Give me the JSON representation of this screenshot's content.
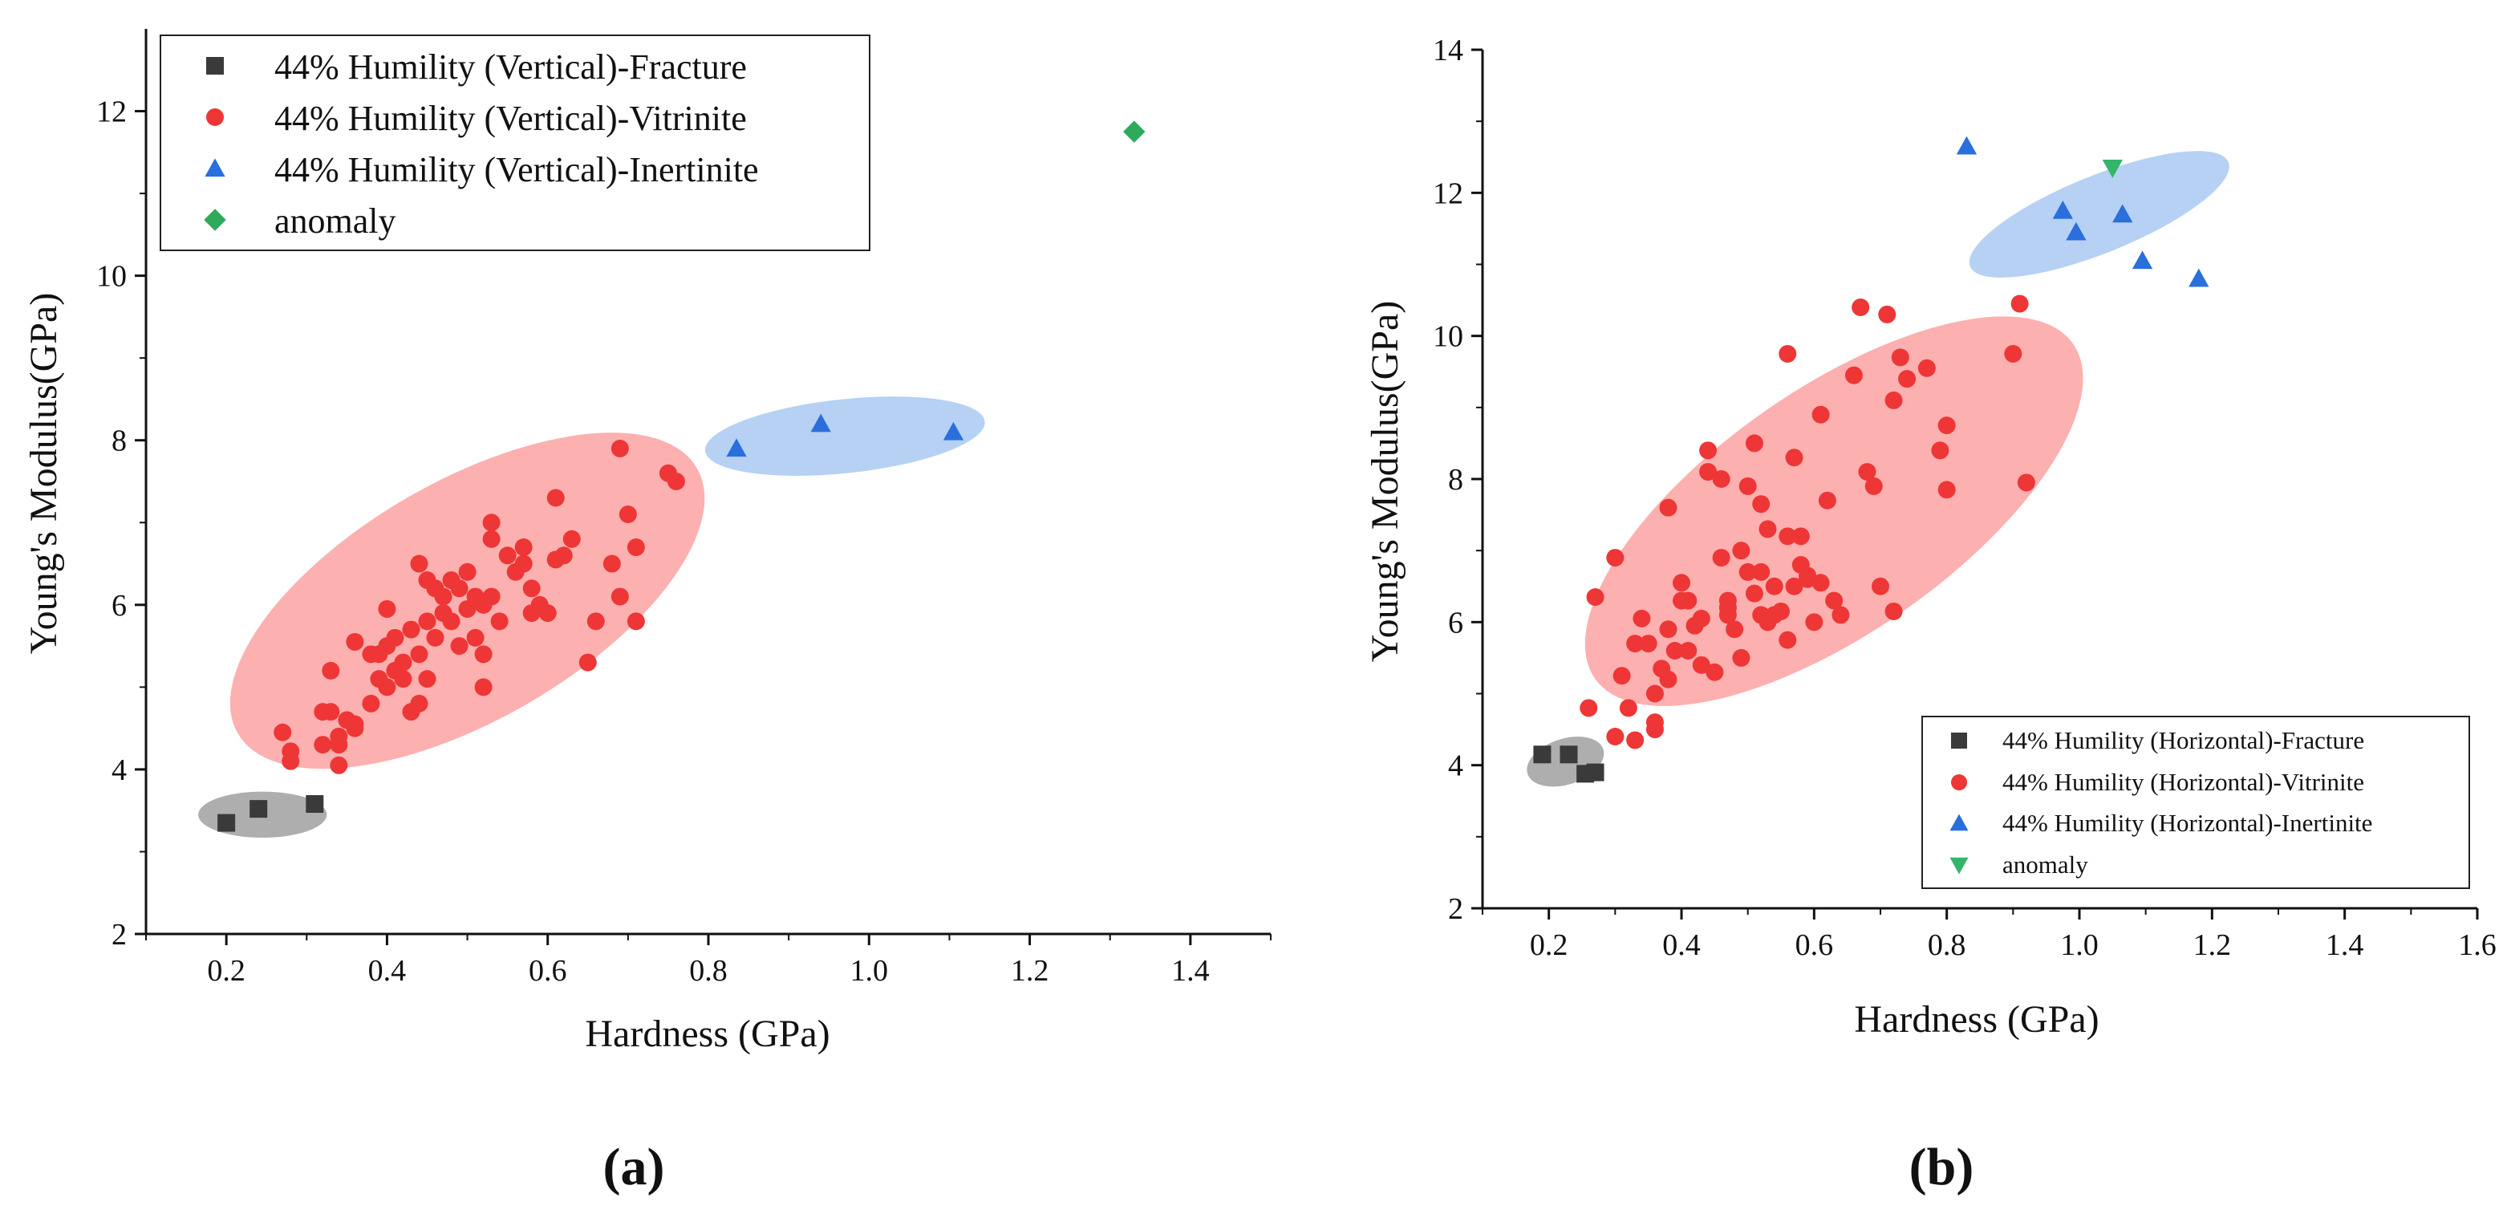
{
  "colors": {
    "fracture": "#3a3a3a",
    "vitrinite": "#ee3636",
    "inertinite": "#2a6fdc",
    "anomaly_a": "#2eaa5c",
    "anomaly_b": "#33b56a",
    "zone_fracture": "#9a9a9a",
    "zone_vitrinite": "#fc9c9c",
    "zone_inertinite": "#a4c6f0"
  },
  "chart_data": [
    {
      "type": "scatter",
      "panel_label": "(a)",
      "xlabel": "Hardness (GPa)",
      "ylabel": "Young's Modulus(GPa)",
      "xlim": [
        0.1,
        1.5
      ],
      "ylim": [
        2,
        13
      ],
      "xticks": [
        "0.2",
        "0.4",
        "0.6",
        "0.8",
        "1.0",
        "1.2",
        "1.4"
      ],
      "yticks": [
        "2",
        "4",
        "6",
        "8",
        "10",
        "12"
      ],
      "legend_position": "top-left",
      "zones": [
        {
          "name": "fracture",
          "cx": 0.245,
          "cy": 3.45,
          "rx": 0.08,
          "ry": 0.28,
          "angle": 0
        },
        {
          "name": "vitrinite",
          "cx": 0.5,
          "cy": 6.05,
          "rx": 0.33,
          "ry": 1.45,
          "angle": -30
        },
        {
          "name": "inertinite",
          "cx": 0.97,
          "cy": 8.05,
          "rx": 0.175,
          "ry": 0.45,
          "angle": -6
        }
      ],
      "series": [
        {
          "name": "44% Humility (Vertical)-Fracture",
          "marker": "square",
          "color_key": "fracture",
          "x": [
            0.2,
            0.24,
            0.31
          ],
          "y": [
            3.35,
            3.52,
            3.58
          ]
        },
        {
          "name": "44% Humility (Vertical)-Vitrinite",
          "marker": "circle",
          "color_key": "vitrinite",
          "x": [
            0.27,
            0.28,
            0.28,
            0.32,
            0.32,
            0.33,
            0.34,
            0.34,
            0.35,
            0.36,
            0.36,
            0.38,
            0.38,
            0.39,
            0.4,
            0.4,
            0.4,
            0.41,
            0.41,
            0.42,
            0.42,
            0.43,
            0.43,
            0.44,
            0.44,
            0.45,
            0.45,
            0.46,
            0.46,
            0.47,
            0.47,
            0.48,
            0.48,
            0.49,
            0.49,
            0.5,
            0.5,
            0.51,
            0.51,
            0.52,
            0.52,
            0.53,
            0.53,
            0.54,
            0.55,
            0.56,
            0.57,
            0.58,
            0.58,
            0.59,
            0.6,
            0.61,
            0.62,
            0.63,
            0.65,
            0.66,
            0.68,
            0.69,
            0.7,
            0.71,
            0.71,
            0.75,
            0.76,
            0.33,
            0.36,
            0.45,
            0.52,
            0.57,
            0.34,
            0.44,
            0.39,
            0.69,
            0.53,
            0.61
          ],
          "y": [
            4.45,
            4.1,
            4.22,
            4.3,
            4.7,
            5.2,
            4.05,
            4.4,
            4.6,
            4.55,
            5.55,
            4.8,
            5.4,
            5.1,
            5.0,
            5.5,
            5.95,
            5.2,
            5.6,
            5.3,
            5.1,
            4.7,
            5.7,
            5.4,
            6.5,
            5.1,
            5.8,
            5.6,
            6.2,
            5.9,
            6.1,
            5.8,
            6.3,
            5.5,
            6.2,
            5.95,
            6.4,
            5.6,
            6.1,
            5.4,
            6.0,
            6.8,
            6.1,
            5.8,
            6.6,
            6.4,
            6.7,
            5.9,
            6.2,
            6.0,
            5.9,
            7.3,
            6.6,
            6.8,
            5.3,
            5.8,
            6.5,
            7.9,
            7.1,
            5.8,
            6.7,
            7.6,
            7.5,
            4.7,
            4.5,
            6.3,
            5.0,
            6.5,
            4.3,
            4.8,
            5.4,
            6.1,
            7.0,
            6.55
          ]
        },
        {
          "name": "44% Humility (Vertical)-Inertinite",
          "marker": "triangle",
          "color_key": "inertinite",
          "x": [
            0.835,
            0.94,
            1.105
          ],
          "y": [
            7.9,
            8.2,
            8.1
          ]
        },
        {
          "name": "anomaly",
          "marker": "diamond",
          "color_key": "anomaly_a",
          "x": [
            1.33
          ],
          "y": [
            11.75
          ]
        }
      ]
    },
    {
      "type": "scatter",
      "panel_label": "(b)",
      "xlabel": "Hardness (GPa)",
      "ylabel": "Young's Modulus(GPa)",
      "xlim": [
        0.1,
        1.6
      ],
      "ylim": [
        2,
        14
      ],
      "xticks": [
        "0.2",
        "0.4",
        "0.6",
        "0.8",
        "1.0",
        "1.2",
        "1.4",
        "1.6"
      ],
      "yticks": [
        "2",
        "4",
        "6",
        "8",
        "10",
        "12",
        "14"
      ],
      "legend_position": "bottom-right",
      "zones": [
        {
          "name": "fracture",
          "cx": 0.225,
          "cy": 4.05,
          "rx": 0.06,
          "ry": 0.32,
          "angle": -18
        },
        {
          "name": "vitrinite",
          "cx": 0.63,
          "cy": 7.55,
          "rx": 0.44,
          "ry": 1.7,
          "angle": -35
        },
        {
          "name": "inertinite",
          "cx": 1.03,
          "cy": 11.7,
          "rx": 0.21,
          "ry": 0.54,
          "angle": -22
        }
      ],
      "series": [
        {
          "name": "44% Humility (Horizontal)-Fracture",
          "marker": "square",
          "color_key": "fracture",
          "x": [
            0.19,
            0.23,
            0.255,
            0.27
          ],
          "y": [
            4.15,
            4.15,
            3.88,
            3.9
          ]
        },
        {
          "name": "44% Humility (Horizontal)-Vitrinite",
          "marker": "circle",
          "color_key": "vitrinite",
          "x": [
            0.26,
            0.27,
            0.3,
            0.3,
            0.31,
            0.32,
            0.33,
            0.34,
            0.35,
            0.36,
            0.36,
            0.37,
            0.38,
            0.38,
            0.39,
            0.4,
            0.4,
            0.41,
            0.42,
            0.43,
            0.44,
            0.44,
            0.45,
            0.46,
            0.46,
            0.47,
            0.47,
            0.48,
            0.49,
            0.5,
            0.5,
            0.51,
            0.51,
            0.52,
            0.52,
            0.53,
            0.53,
            0.54,
            0.55,
            0.56,
            0.56,
            0.57,
            0.57,
            0.58,
            0.58,
            0.59,
            0.6,
            0.61,
            0.61,
            0.62,
            0.63,
            0.64,
            0.66,
            0.67,
            0.68,
            0.69,
            0.7,
            0.71,
            0.72,
            0.73,
            0.74,
            0.77,
            0.79,
            0.8,
            0.9,
            0.91,
            0.92,
            0.36,
            0.41,
            0.47,
            0.54,
            0.43,
            0.49,
            0.59,
            0.72,
            0.8,
            0.33,
            0.38,
            0.52,
            0.56
          ],
          "y": [
            4.8,
            6.35,
            4.4,
            6.9,
            5.25,
            4.8,
            4.35,
            6.05,
            5.7,
            4.5,
            4.6,
            5.35,
            5.9,
            7.6,
            5.6,
            6.3,
            6.55,
            5.6,
            5.95,
            6.05,
            8.4,
            8.1,
            5.3,
            6.9,
            8.0,
            6.1,
            6.3,
            5.9,
            7.0,
            6.7,
            7.9,
            6.4,
            8.5,
            6.1,
            7.65,
            6.0,
            7.3,
            6.5,
            6.15,
            5.75,
            7.2,
            6.5,
            8.3,
            6.8,
            7.2,
            6.6,
            6.0,
            8.9,
            6.55,
            7.7,
            6.3,
            6.1,
            9.45,
            10.4,
            8.1,
            7.9,
            6.5,
            10.3,
            9.1,
            9.7,
            9.4,
            9.55,
            8.4,
            8.75,
            9.75,
            10.45,
            7.95,
            5.0,
            6.3,
            6.2,
            6.1,
            5.4,
            5.5,
            6.65,
            6.15,
            7.85,
            5.7,
            5.2,
            6.7,
            9.75
          ]
        },
        {
          "name": "44% Humility (Horizontal)-Inertinite",
          "marker": "triangle",
          "color_key": "inertinite",
          "x": [
            0.83,
            0.975,
            0.995,
            1.065,
            1.095,
            1.18
          ],
          "y": [
            12.65,
            11.75,
            11.45,
            11.7,
            11.05,
            10.8
          ]
        },
        {
          "name": "anomaly",
          "marker": "triangle-down",
          "color_key": "anomaly_b",
          "x": [
            1.05
          ],
          "y": [
            12.35
          ]
        }
      ]
    }
  ]
}
